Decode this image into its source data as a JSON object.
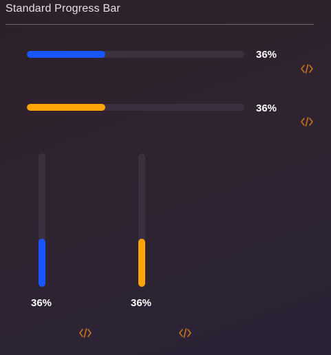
{
  "header": {
    "title": "Standard Progress Bar"
  },
  "colors": {
    "blue": "#1a56ff",
    "orange": "#ffa50a",
    "track": "#3b3040",
    "icon": "#c9741f"
  },
  "bars": [
    {
      "orientation": "horizontal",
      "color": "blue",
      "progress": 36,
      "label": "36%",
      "icon": "code-icon"
    },
    {
      "orientation": "horizontal",
      "color": "orange",
      "progress": 36,
      "label": "36%",
      "icon": "code-icon"
    },
    {
      "orientation": "vertical",
      "color": "blue",
      "progress": 36,
      "label": "36%",
      "icon": "code-icon"
    },
    {
      "orientation": "vertical",
      "color": "orange",
      "progress": 36,
      "label": "36%",
      "icon": "code-icon"
    }
  ]
}
